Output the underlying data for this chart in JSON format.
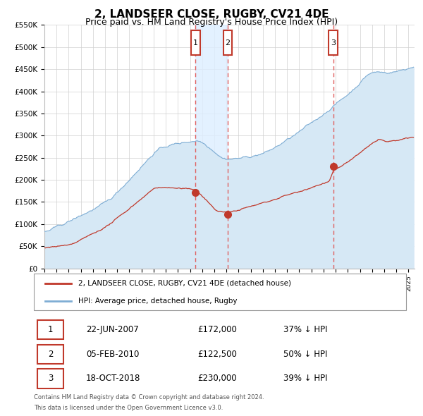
{
  "title": "2, LANDSEER CLOSE, RUGBY, CV21 4DE",
  "subtitle": "Price paid vs. HM Land Registry's House Price Index (HPI)",
  "title_fontsize": 11,
  "subtitle_fontsize": 9,
  "ylim": [
    0,
    550000
  ],
  "yticks": [
    0,
    50000,
    100000,
    150000,
    200000,
    250000,
    300000,
    350000,
    400000,
    450000,
    500000,
    550000
  ],
  "ytick_labels": [
    "£0",
    "£50K",
    "£100K",
    "£150K",
    "£200K",
    "£250K",
    "£300K",
    "£350K",
    "£400K",
    "£450K",
    "£500K",
    "£550K"
  ],
  "xmin": 1995.0,
  "xmax": 2025.5,
  "hpi_color": "#7eadd4",
  "hpi_fill_color": "#d6e8f5",
  "price_color": "#c0392b",
  "dashed_line_color": "#e06060",
  "marker_box_color": "#c0392b",
  "grid_color": "#d0d0d0",
  "shade_color": "#ddeeff",
  "transactions": [
    {
      "num": 1,
      "date": "22-JUN-2007",
      "year": 2007.46,
      "price": 172000,
      "pct": "37%",
      "direction": "↓"
    },
    {
      "num": 2,
      "date": "05-FEB-2010",
      "year": 2010.09,
      "price": 122500,
      "pct": "50%",
      "direction": "↓"
    },
    {
      "num": 3,
      "date": "18-OCT-2018",
      "year": 2018.79,
      "price": 230000,
      "pct": "39%",
      "direction": "↓"
    }
  ],
  "legend_entries": [
    "2, LANDSEER CLOSE, RUGBY, CV21 4DE (detached house)",
    "HPI: Average price, detached house, Rugby"
  ],
  "footer_lines": [
    "Contains HM Land Registry data © Crown copyright and database right 2024.",
    "This data is licensed under the Open Government Licence v3.0."
  ]
}
